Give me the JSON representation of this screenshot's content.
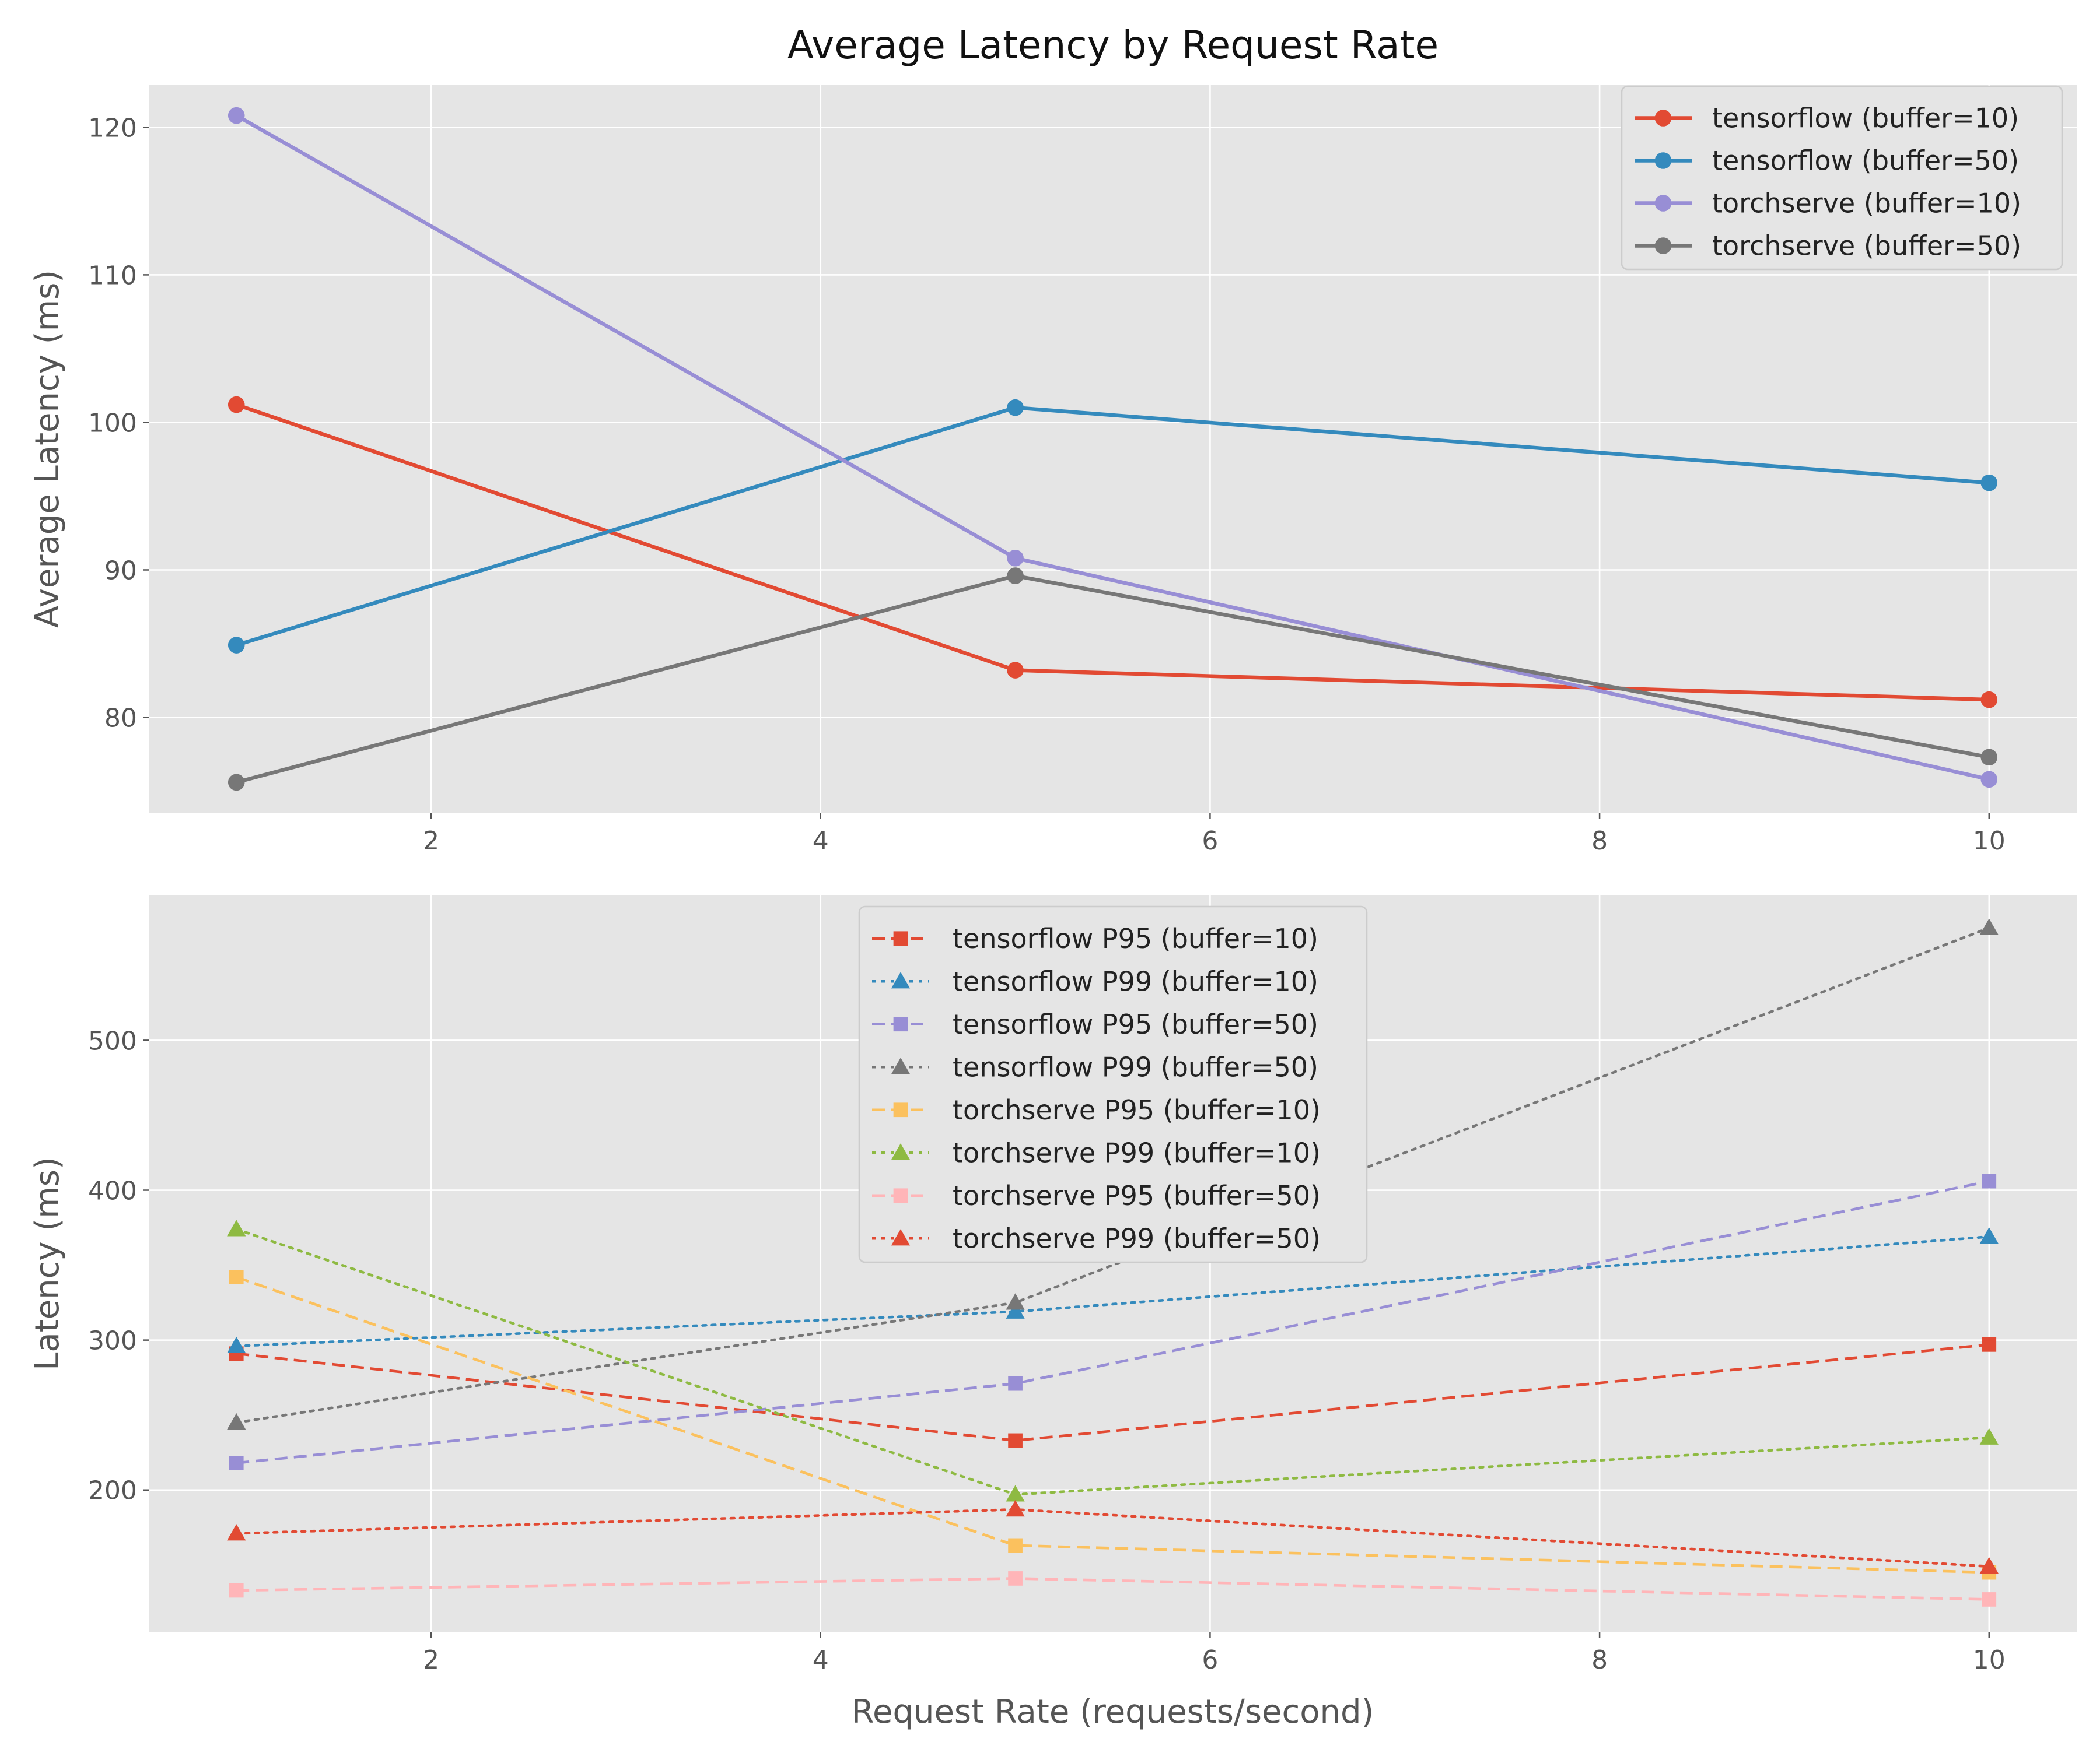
{
  "chart_data": [
    {
      "type": "line",
      "title": "Average Latency by Request Rate",
      "xlabel": "",
      "ylabel": "Average Latency (ms)",
      "x": [
        1,
        5,
        10
      ],
      "xlim": [
        0.55,
        10.45
      ],
      "ylim": [
        73.5,
        122.9
      ],
      "xticks": [
        2,
        4,
        6,
        8,
        10
      ],
      "yticks": [
        80,
        90,
        100,
        110,
        120
      ],
      "grid": true,
      "legend_position": "top-right",
      "series": [
        {
          "name": "tensorflow (buffer=10)",
          "values": [
            101.2,
            83.2,
            81.2
          ],
          "color": "#E24A33",
          "linestyle": "solid",
          "marker": "circle"
        },
        {
          "name": "tensorflow (buffer=50)",
          "values": [
            84.9,
            101.0,
            95.9
          ],
          "color": "#348ABD",
          "linestyle": "solid",
          "marker": "circle"
        },
        {
          "name": "torchserve (buffer=10)",
          "values": [
            120.8,
            90.8,
            75.8
          ],
          "color": "#988ED5",
          "linestyle": "solid",
          "marker": "circle"
        },
        {
          "name": "torchserve (buffer=50)",
          "values": [
            75.6,
            89.6,
            77.3
          ],
          "color": "#777777",
          "linestyle": "solid",
          "marker": "circle"
        }
      ]
    },
    {
      "type": "line",
      "title": "",
      "xlabel": "Request Rate (requests/second)",
      "ylabel": "Latency (ms)",
      "x": [
        1,
        5,
        10
      ],
      "xlim": [
        0.55,
        10.45
      ],
      "ylim": [
        105,
        597
      ],
      "xticks": [
        2,
        4,
        6,
        8,
        10
      ],
      "yticks": [
        200,
        300,
        400,
        500
      ],
      "grid": true,
      "legend_position": "top-center",
      "series": [
        {
          "name": "tensorflow P95 (buffer=10)",
          "values": [
            291,
            233,
            297
          ],
          "color": "#E24A33",
          "linestyle": "dashed",
          "marker": "square"
        },
        {
          "name": "tensorflow P99 (buffer=10)",
          "values": [
            296,
            319,
            369
          ],
          "color": "#348ABD",
          "linestyle": "dotted",
          "marker": "triangle"
        },
        {
          "name": "tensorflow P95 (buffer=50)",
          "values": [
            218,
            271,
            406
          ],
          "color": "#988ED5",
          "linestyle": "dashed",
          "marker": "square"
        },
        {
          "name": "tensorflow P99 (buffer=50)",
          "values": [
            245,
            325,
            575
          ],
          "color": "#777777",
          "linestyle": "dotted",
          "marker": "triangle"
        },
        {
          "name": "torchserve P95 (buffer=10)",
          "values": [
            342,
            163,
            145
          ],
          "color": "#FBC15E",
          "linestyle": "dashed",
          "marker": "square"
        },
        {
          "name": "torchserve P99 (buffer=10)",
          "values": [
            374,
            197,
            235
          ],
          "color": "#8EBA42",
          "linestyle": "dotted",
          "marker": "triangle"
        },
        {
          "name": "torchserve P95 (buffer=50)",
          "values": [
            133,
            141,
            127
          ],
          "color": "#FFB5B8",
          "linestyle": "dashed",
          "marker": "square"
        },
        {
          "name": "torchserve P99 (buffer=50)",
          "values": [
            171,
            187,
            149
          ],
          "color": "#E24A33",
          "linestyle": "dotted",
          "marker": "triangle"
        }
      ]
    }
  ]
}
